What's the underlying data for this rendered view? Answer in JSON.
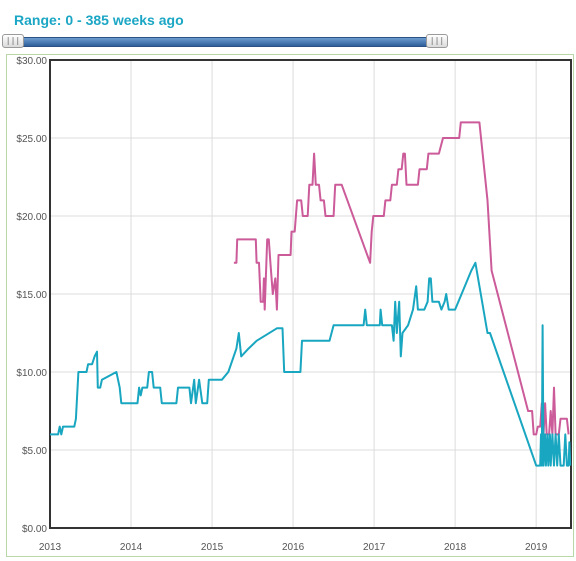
{
  "range_label": "Range: 0 - 385 weeks ago",
  "slider": {
    "left_handle_glyph": "|||",
    "right_handle_glyph": "|||"
  },
  "colors": {
    "series_pink": "#cc5b9a",
    "series_teal": "#19a6c0",
    "grid": "#dcdcdc",
    "axis": "#333333"
  },
  "chart_data": {
    "type": "line",
    "title": "",
    "xlabel": "",
    "ylabel": "",
    "xlim": [
      2013.0,
      2019.43
    ],
    "ylim": [
      0,
      30
    ],
    "x_ticks": [
      2013,
      2014,
      2015,
      2016,
      2017,
      2018,
      2019
    ],
    "x_tick_labels": [
      "2013",
      "2014",
      "2015",
      "2016",
      "2017",
      "2018",
      "2019"
    ],
    "y_ticks": [
      0,
      5,
      10,
      15,
      20,
      25,
      30
    ],
    "y_tick_labels": [
      "$0.00",
      "$5.00",
      "$10.00",
      "$15.00",
      "$20.00",
      "$25.00",
      "$30.00"
    ],
    "grid": true,
    "series": [
      {
        "color": "#cc5b9a",
        "points": [
          [
            2015.27,
            17.0
          ],
          [
            2015.3,
            17.0
          ],
          [
            2015.31,
            18.5
          ],
          [
            2015.54,
            18.5
          ],
          [
            2015.55,
            17.0
          ],
          [
            2015.58,
            17.0
          ],
          [
            2015.6,
            14.5
          ],
          [
            2015.63,
            14.5
          ],
          [
            2015.64,
            16.0
          ],
          [
            2015.65,
            14.0
          ],
          [
            2015.68,
            18.5
          ],
          [
            2015.7,
            18.5
          ],
          [
            2015.72,
            17.0
          ],
          [
            2015.75,
            15.0
          ],
          [
            2015.78,
            16.0
          ],
          [
            2015.8,
            14.0
          ],
          [
            2015.82,
            17.5
          ],
          [
            2015.97,
            17.5
          ],
          [
            2015.98,
            19.0
          ],
          [
            2016.02,
            19.0
          ],
          [
            2016.05,
            21.0
          ],
          [
            2016.1,
            21.0
          ],
          [
            2016.12,
            20.0
          ],
          [
            2016.18,
            20.0
          ],
          [
            2016.2,
            22.0
          ],
          [
            2016.24,
            22.0
          ],
          [
            2016.26,
            24.0
          ],
          [
            2016.28,
            22.0
          ],
          [
            2016.32,
            22.0
          ],
          [
            2016.34,
            21.0
          ],
          [
            2016.38,
            21.0
          ],
          [
            2016.4,
            20.0
          ],
          [
            2016.5,
            20.0
          ],
          [
            2016.52,
            22.0
          ],
          [
            2016.6,
            22.0
          ],
          [
            2016.95,
            17.0
          ],
          [
            2016.97,
            19.0
          ],
          [
            2016.99,
            20.0
          ],
          [
            2017.12,
            20.0
          ],
          [
            2017.14,
            21.0
          ],
          [
            2017.2,
            21.0
          ],
          [
            2017.22,
            22.0
          ],
          [
            2017.28,
            22.0
          ],
          [
            2017.3,
            23.0
          ],
          [
            2017.34,
            23.0
          ],
          [
            2017.36,
            24.0
          ],
          [
            2017.38,
            24.0
          ],
          [
            2017.4,
            22.0
          ],
          [
            2017.54,
            22.0
          ],
          [
            2017.56,
            23.0
          ],
          [
            2017.65,
            23.0
          ],
          [
            2017.67,
            24.0
          ],
          [
            2017.8,
            24.0
          ],
          [
            2017.85,
            25.0
          ],
          [
            2018.05,
            25.0
          ],
          [
            2018.07,
            26.0
          ],
          [
            2018.3,
            26.0
          ],
          [
            2018.4,
            21.0
          ],
          [
            2018.45,
            16.5
          ],
          [
            2018.9,
            7.5
          ],
          [
            2018.95,
            7.5
          ],
          [
            2018.97,
            6.0
          ],
          [
            2019.0,
            6.0
          ],
          [
            2019.02,
            6.5
          ],
          [
            2019.05,
            6.5
          ],
          [
            2019.07,
            8.0
          ],
          [
            2019.09,
            6.0
          ],
          [
            2019.11,
            8.0
          ],
          [
            2019.13,
            6.0
          ],
          [
            2019.16,
            6.0
          ],
          [
            2019.18,
            7.5
          ],
          [
            2019.2,
            6.0
          ],
          [
            2019.22,
            9.0
          ],
          [
            2019.24,
            6.0
          ],
          [
            2019.28,
            6.0
          ],
          [
            2019.3,
            7.0
          ],
          [
            2019.38,
            7.0
          ],
          [
            2019.4,
            6.0
          ]
        ]
      },
      {
        "color": "#19a6c0",
        "points": [
          [
            2013.0,
            6.0
          ],
          [
            2013.1,
            6.0
          ],
          [
            2013.12,
            6.5
          ],
          [
            2013.14,
            6.0
          ],
          [
            2013.16,
            6.5
          ],
          [
            2013.3,
            6.5
          ],
          [
            2013.32,
            7.0
          ],
          [
            2013.35,
            10.0
          ],
          [
            2013.45,
            10.0
          ],
          [
            2013.47,
            10.5
          ],
          [
            2013.52,
            10.5
          ],
          [
            2013.55,
            11.0
          ],
          [
            2013.58,
            11.3
          ],
          [
            2013.59,
            9.0
          ],
          [
            2013.62,
            9.0
          ],
          [
            2013.64,
            9.5
          ],
          [
            2013.82,
            10.0
          ],
          [
            2013.86,
            9.0
          ],
          [
            2013.88,
            8.0
          ],
          [
            2014.08,
            8.0
          ],
          [
            2014.1,
            9.0
          ],
          [
            2014.12,
            8.5
          ],
          [
            2014.14,
            9.0
          ],
          [
            2014.2,
            9.0
          ],
          [
            2014.22,
            10.0
          ],
          [
            2014.26,
            10.0
          ],
          [
            2014.28,
            9.0
          ],
          [
            2014.36,
            9.0
          ],
          [
            2014.38,
            8.0
          ],
          [
            2014.56,
            8.0
          ],
          [
            2014.58,
            9.0
          ],
          [
            2014.64,
            9.0
          ],
          [
            2014.72,
            9.0
          ],
          [
            2014.74,
            8.0
          ],
          [
            2014.78,
            9.5
          ],
          [
            2014.8,
            8.0
          ],
          [
            2014.84,
            9.5
          ],
          [
            2014.88,
            8.0
          ],
          [
            2014.94,
            8.0
          ],
          [
            2014.96,
            9.5
          ],
          [
            2015.12,
            9.5
          ],
          [
            2015.2,
            10.0
          ],
          [
            2015.3,
            11.5
          ],
          [
            2015.33,
            12.5
          ],
          [
            2015.36,
            11.0
          ],
          [
            2015.45,
            11.5
          ],
          [
            2015.55,
            12.0
          ],
          [
            2015.8,
            12.8
          ],
          [
            2015.87,
            12.8
          ],
          [
            2015.89,
            10.0
          ],
          [
            2016.09,
            10.0
          ],
          [
            2016.11,
            12.0
          ],
          [
            2016.45,
            12.0
          ],
          [
            2016.5,
            13.0
          ],
          [
            2016.87,
            13.0
          ],
          [
            2016.89,
            14.0
          ],
          [
            2016.91,
            13.0
          ],
          [
            2017.07,
            13.0
          ],
          [
            2017.08,
            14.0
          ],
          [
            2017.1,
            13.0
          ],
          [
            2017.22,
            13.0
          ],
          [
            2017.24,
            12.0
          ],
          [
            2017.26,
            14.5
          ],
          [
            2017.28,
            12.5
          ],
          [
            2017.31,
            14.5
          ],
          [
            2017.33,
            11.0
          ],
          [
            2017.35,
            12.5
          ],
          [
            2017.42,
            13.0
          ],
          [
            2017.48,
            14.0
          ],
          [
            2017.52,
            15.5
          ],
          [
            2017.54,
            14.0
          ],
          [
            2017.62,
            14.0
          ],
          [
            2017.66,
            14.5
          ],
          [
            2017.68,
            16.0
          ],
          [
            2017.7,
            16.0
          ],
          [
            2017.72,
            14.5
          ],
          [
            2017.8,
            14.5
          ],
          [
            2017.83,
            14.0
          ],
          [
            2017.87,
            14.5
          ],
          [
            2017.89,
            15.0
          ],
          [
            2017.92,
            14.0
          ],
          [
            2018.0,
            14.0
          ],
          [
            2018.2,
            16.5
          ],
          [
            2018.25,
            17.0
          ],
          [
            2018.4,
            12.5
          ],
          [
            2018.43,
            12.5
          ],
          [
            2019.0,
            4.0
          ],
          [
            2019.05,
            4.0
          ],
          [
            2019.06,
            6.0
          ],
          [
            2019.07,
            4.0
          ],
          [
            2019.08,
            13.0
          ],
          [
            2019.09,
            4.0
          ],
          [
            2019.11,
            6.0
          ],
          [
            2019.12,
            4.0
          ],
          [
            2019.14,
            6.0
          ],
          [
            2019.15,
            4.0
          ],
          [
            2019.17,
            6.0
          ],
          [
            2019.18,
            4.0
          ],
          [
            2019.2,
            6.0
          ],
          [
            2019.22,
            4.0
          ],
          [
            2019.24,
            6.0
          ],
          [
            2019.26,
            4.0
          ],
          [
            2019.28,
            6.0
          ],
          [
            2019.3,
            4.0
          ],
          [
            2019.34,
            4.0
          ],
          [
            2019.36,
            6.0
          ],
          [
            2019.38,
            4.0
          ],
          [
            2019.4,
            4.0
          ],
          [
            2019.41,
            5.5
          ],
          [
            2019.42,
            4.0
          ]
        ]
      }
    ]
  }
}
